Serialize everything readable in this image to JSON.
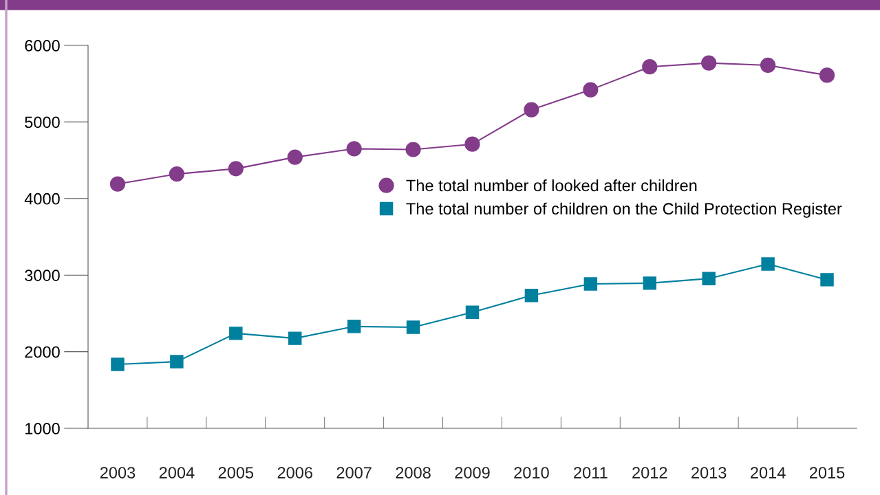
{
  "chart_data": {
    "type": "line",
    "categories": [
      "2003",
      "2004",
      "2005",
      "2006",
      "2007",
      "2008",
      "2009",
      "2010",
      "2011",
      "2012",
      "2013",
      "2014",
      "2015"
    ],
    "series": [
      {
        "name": "The total number of looked after children",
        "color": "#833c8a",
        "marker": "circle",
        "values": [
          4190,
          4320,
          4390,
          4540,
          4650,
          4640,
          4710,
          5160,
          5420,
          5720,
          5770,
          5740,
          5610
        ]
      },
      {
        "name": "The total number of children on the Child Protection Register",
        "color": "#00809f",
        "marker": "square",
        "values": [
          1835,
          1870,
          2240,
          2175,
          2330,
          2320,
          2515,
          2735,
          2885,
          2895,
          2955,
          3145,
          2940
        ]
      }
    ],
    "ylim": [
      1000,
      6000
    ],
    "yticks": [
      1000,
      2000,
      3000,
      4000,
      5000,
      6000
    ],
    "grid": false,
    "legend": "right",
    "line_style": "solid"
  }
}
